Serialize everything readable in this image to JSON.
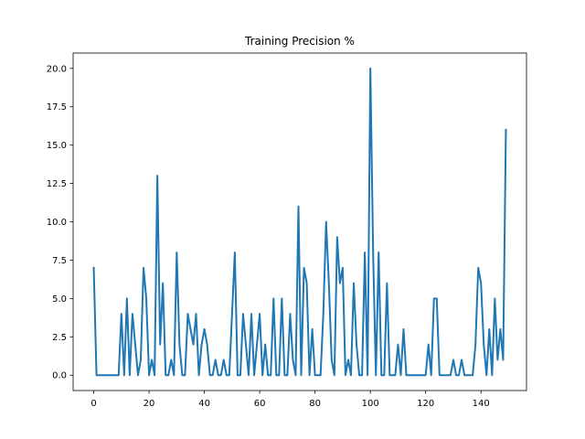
{
  "chart_data": {
    "type": "line",
    "title": "Training Precision %",
    "xlabel": "",
    "ylabel": "",
    "xlim": [
      -7.45,
      156.45
    ],
    "ylim": [
      -1.0,
      21.0
    ],
    "xticks": [
      0,
      20,
      40,
      60,
      80,
      100,
      120,
      140
    ],
    "yticks": [
      0.0,
      2.5,
      5.0,
      7.5,
      10.0,
      12.5,
      15.0,
      17.5,
      20.0
    ],
    "grid": false,
    "series": [
      {
        "color": "#1f77b4",
        "x": [
          0,
          1,
          2,
          3,
          4,
          5,
          6,
          7,
          8,
          9,
          10,
          11,
          12,
          13,
          14,
          15,
          16,
          17,
          18,
          19,
          20,
          21,
          22,
          23,
          24,
          25,
          26,
          27,
          28,
          29,
          30,
          31,
          32,
          33,
          34,
          35,
          36,
          37,
          38,
          39,
          40,
          41,
          42,
          43,
          44,
          45,
          46,
          47,
          48,
          49,
          50,
          51,
          52,
          53,
          54,
          55,
          56,
          57,
          58,
          59,
          60,
          61,
          62,
          63,
          64,
          65,
          66,
          67,
          68,
          69,
          70,
          71,
          72,
          73,
          74,
          75,
          76,
          77,
          78,
          79,
          80,
          81,
          82,
          83,
          84,
          85,
          86,
          87,
          88,
          89,
          90,
          91,
          92,
          93,
          94,
          95,
          96,
          97,
          98,
          99,
          100,
          101,
          102,
          103,
          104,
          105,
          106,
          107,
          108,
          109,
          110,
          111,
          112,
          113,
          114,
          115,
          116,
          117,
          118,
          119,
          120,
          121,
          122,
          123,
          124,
          125,
          126,
          127,
          128,
          129,
          130,
          131,
          132,
          133,
          134,
          135,
          136,
          137,
          138,
          139,
          140,
          141,
          142,
          143,
          144,
          145,
          146,
          147,
          148,
          149
        ],
        "y": [
          7,
          0,
          0,
          0,
          0,
          0,
          0,
          0,
          0,
          0,
          4,
          0,
          5,
          0,
          4,
          2,
          0,
          1,
          7,
          5,
          0,
          1,
          0,
          13,
          2,
          6,
          0,
          0,
          1,
          0,
          8,
          2,
          0,
          0,
          4,
          3,
          2,
          4,
          0,
          2,
          3,
          2,
          0,
          0,
          1,
          0,
          0,
          1,
          0,
          0,
          4,
          8,
          0,
          0,
          4,
          2,
          0,
          4,
          0,
          2,
          4,
          0,
          2,
          0,
          0,
          5,
          0,
          0,
          5,
          0,
          0,
          4,
          1,
          0,
          11,
          0,
          7,
          6,
          0,
          3,
          0,
          0,
          0,
          4,
          10,
          6,
          1,
          0,
          9,
          6,
          7,
          0,
          1,
          0,
          6,
          2,
          0,
          0,
          8,
          0,
          20,
          8,
          0,
          8,
          0,
          0,
          6,
          0,
          0,
          0,
          2,
          0,
          3,
          0,
          0,
          0,
          0,
          0,
          0,
          0,
          0,
          2,
          0,
          5,
          5,
          0,
          0,
          0,
          0,
          0,
          1,
          0,
          0,
          1,
          0,
          0,
          0,
          0,
          2,
          7,
          6,
          2,
          0,
          3,
          0,
          5,
          1,
          3,
          1,
          16
        ]
      }
    ]
  }
}
